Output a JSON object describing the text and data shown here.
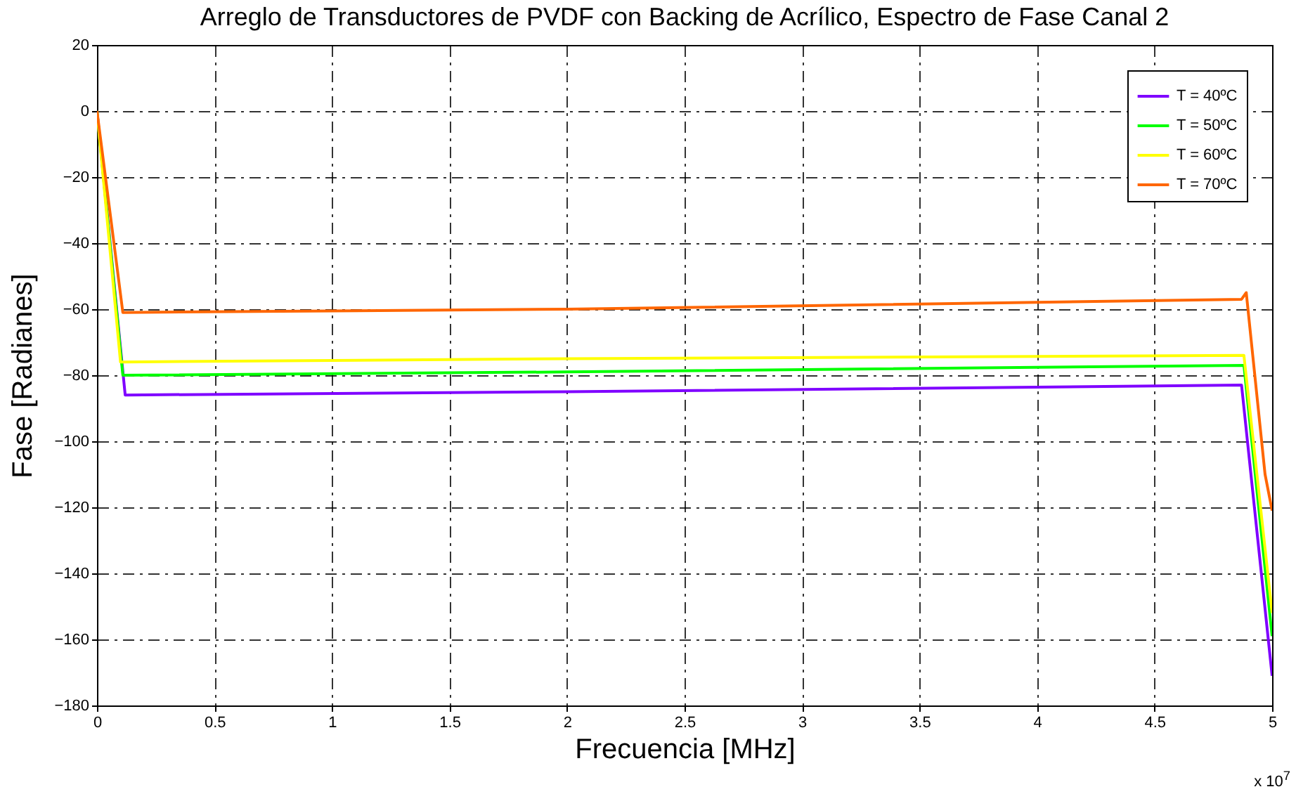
{
  "chart_data": {
    "type": "line",
    "title": "Arreglo de Transductores de PVDF con Backing de Acrílico, Espectro de Fase Canal 2",
    "xlabel": "Frecuencia [MHz]",
    "ylabel": "Fase [Radianes]",
    "annotations": [
      "x 10$^{7}$"
    ],
    "xlim": [
      0,
      5
    ],
    "xticks": [
      0,
      0.5,
      1,
      1.5,
      2,
      2.5,
      3,
      3.5,
      4,
      4.5,
      5
    ],
    "ylim": [
      -180,
      20
    ],
    "yticks": [
      -180,
      -160,
      -140,
      -120,
      -100,
      -80,
      -60,
      -40,
      -20,
      0,
      20
    ],
    "grid": true,
    "legend": "top right",
    "line_style": "solid",
    "marker": "none",
    "series": [
      {
        "name": "T = 40ºC",
        "color": "#7f00ff",
        "x": [
          0,
          0.12,
          2,
          4.87,
          5
        ],
        "values": [
          0,
          -86,
          -85,
          -83,
          -171
        ]
      },
      {
        "name": "T = 50ºC",
        "color": "#00ff00",
        "x": [
          0,
          0.11,
          2,
          4.88,
          5
        ],
        "values": [
          0,
          -80,
          -79,
          -77,
          -159
        ]
      },
      {
        "name": "T = 60ºC",
        "color": "#ffff00",
        "x": [
          0,
          0.1,
          2,
          4.88,
          5
        ],
        "values": [
          0,
          -76,
          -75,
          -74,
          -152
        ]
      },
      {
        "name": "T = 70ºC",
        "color": "#ff6600",
        "x": [
          0,
          0.11,
          2,
          4.87,
          4.89,
          4.97,
          5
        ],
        "values": [
          0,
          -61,
          -60,
          -57,
          -55,
          -110,
          -121
        ]
      }
    ]
  }
}
